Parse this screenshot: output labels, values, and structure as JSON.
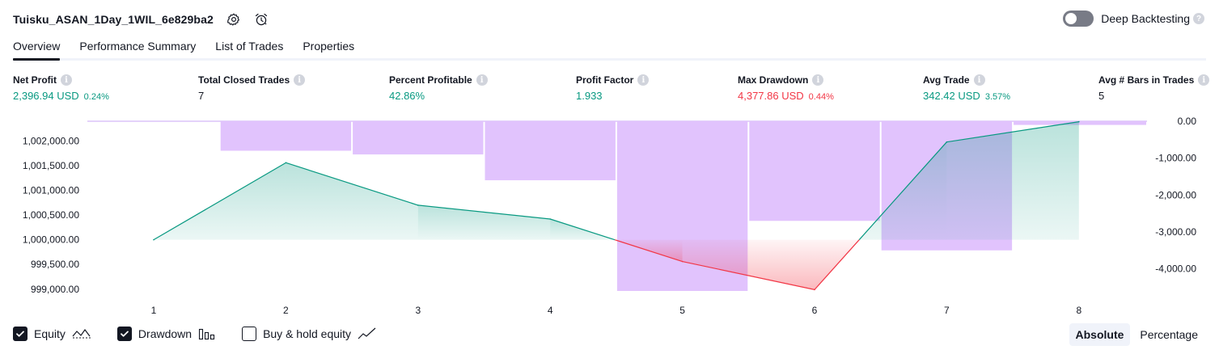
{
  "header": {
    "strategy_name": "Tuisku_ASAN_1Day_1WIL_6e829ba2",
    "icons": [
      "gear-icon",
      "alarm-clock-icon"
    ],
    "deep_backtesting": {
      "label": "Deep Backtesting",
      "enabled": false,
      "help": "?"
    }
  },
  "tabs": [
    {
      "label": "Overview",
      "active": true
    },
    {
      "label": "Performance Summary",
      "active": false
    },
    {
      "label": "List of Trades",
      "active": false
    },
    {
      "label": "Properties",
      "active": false
    }
  ],
  "info_glyph": "i",
  "metrics": [
    {
      "label": "Net Profit",
      "value": "2,396.94 USD",
      "pct": "0.24%",
      "tone": "pos"
    },
    {
      "label": "Total Closed Trades",
      "value": "7",
      "pct": "",
      "tone": "neu"
    },
    {
      "label": "Percent Profitable",
      "value": "42.86%",
      "pct": "",
      "tone": "pos"
    },
    {
      "label": "Profit Factor",
      "value": "1.933",
      "pct": "",
      "tone": "pos"
    },
    {
      "label": "Max Drawdown",
      "value": "4,377.86 USD",
      "pct": "0.44%",
      "tone": "neg"
    },
    {
      "label": "Avg Trade",
      "value": "342.42 USD",
      "pct": "3.57%",
      "tone": "pos"
    },
    {
      "label": "Avg # Bars in Trades",
      "value": "5",
      "pct": "",
      "tone": "neu"
    }
  ],
  "chart_data": {
    "type": "line",
    "x": [
      1,
      2,
      3,
      4,
      5,
      6,
      7,
      8
    ],
    "series": [
      {
        "values": [
          1000000,
          1001560,
          1000700,
          1000420,
          999560,
          998990,
          1001980,
          1002390
        ]
      },
      {
        "values": [
          0,
          -800,
          -900,
          -1600,
          -4600,
          -2700,
          -3500,
          -100
        ]
      }
    ],
    "equity_baseline": 1000000,
    "left_axis": {
      "ylim": [
        998800,
        1002400
      ],
      "ticks": [
        1002000,
        1001500,
        1001000,
        1000500,
        1000000,
        999500,
        999000
      ],
      "tick_labels": [
        "1,002,000.00",
        "1,001,500.00",
        "1,001,000.00",
        "1,000,500.00",
        "1,000,000.00",
        "999,500.00",
        "999,000.00"
      ]
    },
    "right_axis": {
      "ylim": [
        -4800,
        300
      ],
      "ticks": [
        0,
        -1000,
        -2000,
        -3000,
        -4000
      ],
      "tick_labels": [
        "0.00",
        "-1,000.00",
        "-2,000.00",
        "-3,000.00",
        "-4,000.00"
      ]
    },
    "x_tick_labels": [
      "1",
      "2",
      "3",
      "4",
      "5",
      "6",
      "7",
      "8"
    ],
    "colors": {
      "equity_up": "#089981",
      "equity_down": "#f23645",
      "drawdown_fill": "#e1c3fd",
      "drawdown_line": "#c9a4f5"
    },
    "grid": false
  },
  "legend": [
    {
      "label": "Equity",
      "checked": true,
      "icon": "equity-line-icon"
    },
    {
      "label": "Drawdown",
      "checked": true,
      "icon": "drawdown-bars-icon"
    },
    {
      "label": "Buy & hold equity",
      "checked": false,
      "icon": "buy-hold-line-icon"
    }
  ],
  "mode": {
    "absolute": "Absolute",
    "percentage": "Percentage",
    "active": "absolute"
  }
}
